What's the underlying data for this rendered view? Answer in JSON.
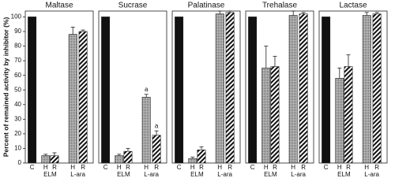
{
  "chart_data": [
    {
      "type": "bar",
      "title": "Maltase",
      "ylabel": "Percent of remained activity by inhibitor (%)",
      "categories": [
        "C",
        "H",
        "R",
        "H",
        "R"
      ],
      "group_labels": [
        "ELM",
        "L-ara"
      ],
      "values": [
        100,
        5,
        5,
        88,
        90
      ],
      "errors": [
        null,
        1,
        2,
        5,
        1
      ],
      "fills": [
        "black",
        "dots",
        "stripes",
        "dots",
        "stripes"
      ],
      "ylim": [
        0,
        104
      ],
      "yticks": [
        0,
        10,
        20,
        30,
        40,
        50,
        60,
        70,
        80,
        90,
        100
      ]
    },
    {
      "type": "bar",
      "title": "Sucrase",
      "categories": [
        "C",
        "H",
        "R",
        "H",
        "R"
      ],
      "group_labels": [
        "ELM",
        "L-ara"
      ],
      "values": [
        100,
        5,
        8,
        45,
        19
      ],
      "errors": [
        null,
        1,
        2,
        2,
        3
      ],
      "value_annotations": [
        null,
        null,
        null,
        "a",
        "a"
      ],
      "fills": [
        "black",
        "dots",
        "stripes",
        "dots",
        "stripes"
      ],
      "ylim": [
        0,
        104
      ]
    },
    {
      "type": "bar",
      "title": "Palatinase",
      "categories": [
        "C",
        "H",
        "R",
        "H",
        "R"
      ],
      "group_labels": [
        "ELM",
        "L-ara"
      ],
      "values": [
        100,
        3,
        9,
        102,
        103
      ],
      "errors": [
        null,
        1,
        2,
        2,
        1
      ],
      "fills": [
        "black",
        "dots",
        "stripes",
        "dots",
        "stripes"
      ],
      "ylim": [
        0,
        104
      ]
    },
    {
      "type": "bar",
      "title": "Trehalase",
      "categories": [
        "C",
        "H",
        "R",
        "H",
        "R"
      ],
      "group_labels": [
        "ELM",
        "L-ara"
      ],
      "values": [
        100,
        65,
        66,
        101,
        102
      ],
      "errors": [
        null,
        15,
        7,
        3,
        1
      ],
      "fills": [
        "black",
        "dots",
        "stripes",
        "dots",
        "stripes"
      ],
      "ylim": [
        0,
        104
      ]
    },
    {
      "type": "bar",
      "title": "Lactase",
      "categories": [
        "C",
        "H",
        "R",
        "H",
        "R"
      ],
      "group_labels": [
        "ELM",
        "L-ara"
      ],
      "values": [
        100,
        58,
        66,
        101,
        102
      ],
      "errors": [
        null,
        7,
        8,
        2,
        1
      ],
      "fills": [
        "black",
        "dots",
        "stripes",
        "dots",
        "stripes"
      ],
      "ylim": [
        0,
        104
      ]
    }
  ]
}
